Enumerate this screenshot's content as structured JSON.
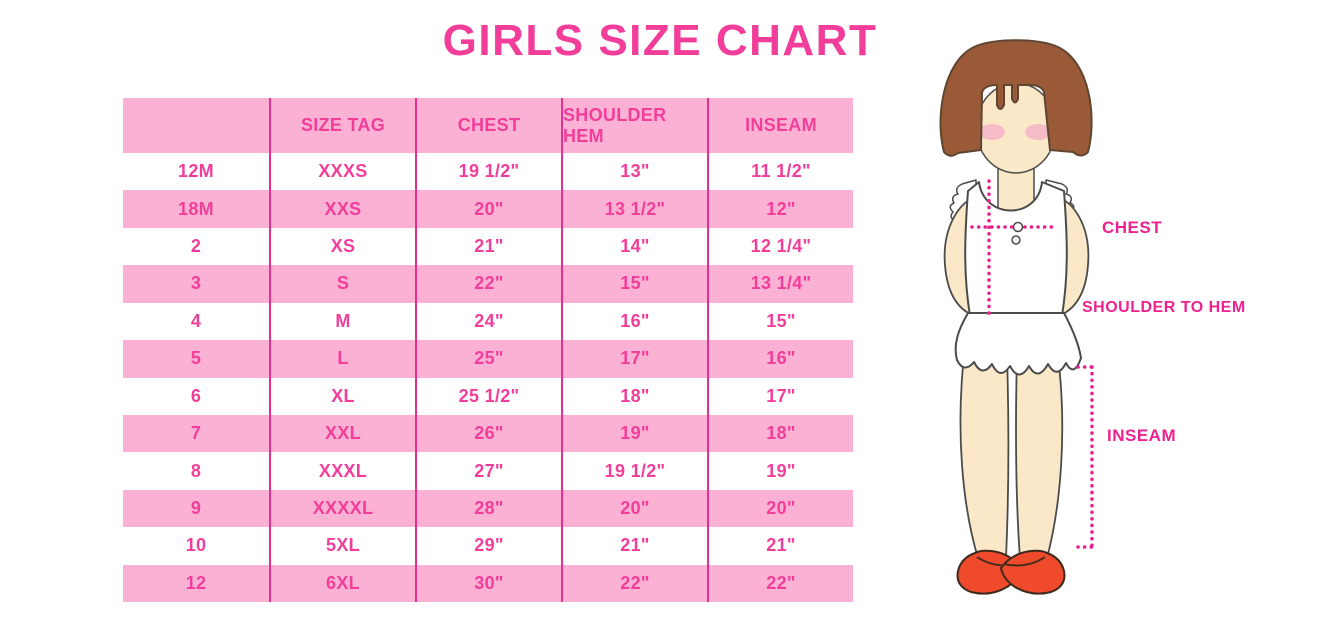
{
  "title": "GIRLS SIZE CHART",
  "table": {
    "columns": [
      "",
      "SIZE TAG",
      "CHEST",
      "SHOULDER HEM",
      "INSEAM"
    ],
    "rows": [
      [
        "12M",
        "XXXS",
        "19 1/2\"",
        "13\"",
        "11 1/2\""
      ],
      [
        "18M",
        "XXS",
        "20\"",
        "13 1/2\"",
        "12\""
      ],
      [
        "2",
        "XS",
        "21\"",
        "14\"",
        "12 1/4\""
      ],
      [
        "3",
        "S",
        "22\"",
        "15\"",
        "13 1/4\""
      ],
      [
        "4",
        "M",
        "24\"",
        "16\"",
        "15\""
      ],
      [
        "5",
        "L",
        "25\"",
        "17\"",
        "16\""
      ],
      [
        "6",
        "XL",
        "25 1/2\"",
        "18\"",
        "17\""
      ],
      [
        "7",
        "XXL",
        "26\"",
        "19\"",
        "18\""
      ],
      [
        "8",
        "XXXL",
        "27\"",
        "19 1/2\"",
        "19\""
      ],
      [
        "9",
        "XXXXL",
        "28\"",
        "20\"",
        "20\""
      ],
      [
        "10",
        "5XL",
        "29\"",
        "21\"",
        "21\""
      ],
      [
        "12",
        "6XL",
        "30\"",
        "22\"",
        "22\""
      ]
    ]
  },
  "chart_data": {
    "type": "table",
    "title": "GIRLS SIZE CHART",
    "columns": [
      "",
      "SIZE TAG",
      "CHEST",
      "SHOULDER HEM",
      "INSEAM"
    ],
    "rows": [
      [
        "12M",
        "XXXS",
        "19 1/2\"",
        "13\"",
        "11 1/2\""
      ],
      [
        "18M",
        "XXS",
        "20\"",
        "13 1/2\"",
        "12\""
      ],
      [
        "2",
        "XS",
        "21\"",
        "14\"",
        "12 1/4\""
      ],
      [
        "3",
        "S",
        "22\"",
        "15\"",
        "13 1/4\""
      ],
      [
        "4",
        "M",
        "24\"",
        "16\"",
        "15\""
      ],
      [
        "5",
        "L",
        "25\"",
        "17\"",
        "16\""
      ],
      [
        "6",
        "XL",
        "25 1/2\"",
        "18\"",
        "17\""
      ],
      [
        "7",
        "XXL",
        "26\"",
        "19\"",
        "18\""
      ],
      [
        "8",
        "XXXL",
        "27\"",
        "19 1/2\"",
        "19\""
      ],
      [
        "9",
        "XXXXL",
        "28\"",
        "20\"",
        "20\""
      ],
      [
        "10",
        "5XL",
        "29\"",
        "21\"",
        "21\""
      ],
      [
        "12",
        "6XL",
        "30\"",
        "22\"",
        "22\""
      ]
    ]
  },
  "figure": {
    "chest_label": "CHEST",
    "shoulder_to_hem_label": "SHOULDER TO HEM",
    "inseam_label": "INSEAM"
  },
  "colors": {
    "accent": "#f23e9a",
    "row_pink": "#fbb1d4",
    "divider": "#e52e92",
    "label_pink": "#ee218f",
    "dot_line": "#e91e8c",
    "hair": "#9a5a38",
    "skin": "#fae8c8",
    "blush": "#f3b3c6",
    "shoe": "#ef4a2b"
  }
}
